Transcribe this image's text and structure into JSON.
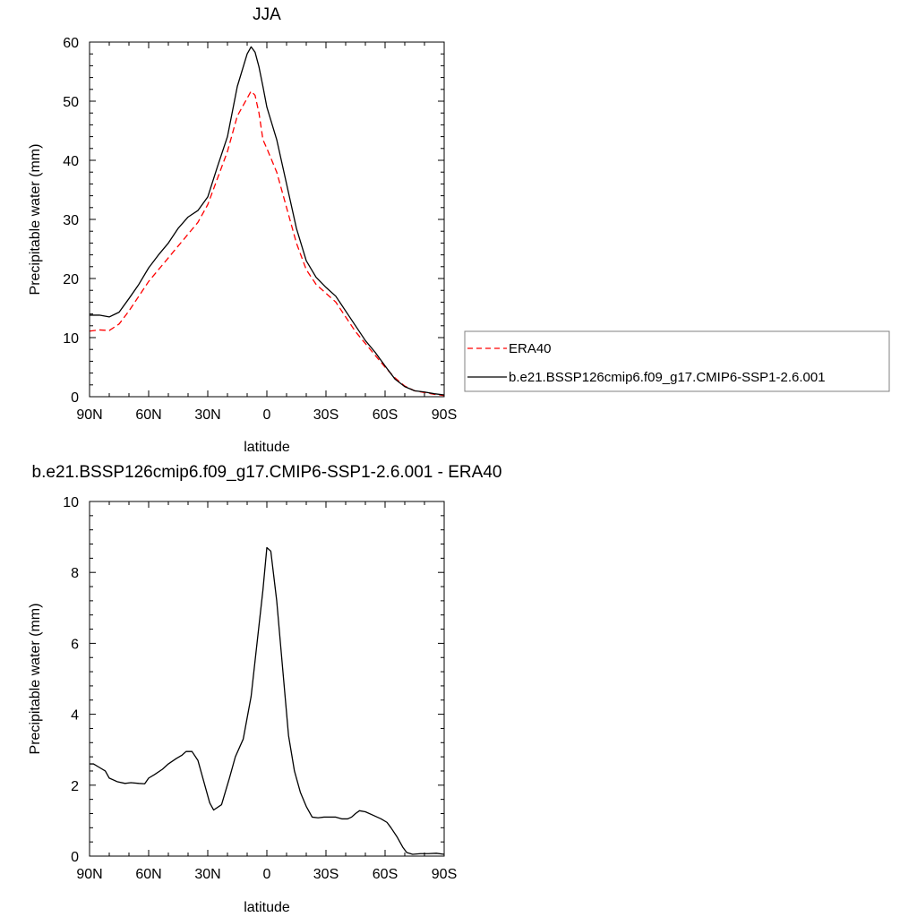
{
  "chart_data": [
    {
      "type": "line",
      "title": "JJA",
      "xlabel": "latitude",
      "ylabel": "Precipitable water (mm)",
      "xlim": [
        90,
        -90
      ],
      "ylim": [
        0,
        60
      ],
      "x_ticks": [
        {
          "value": 90,
          "label": "90N"
        },
        {
          "value": 60,
          "label": "60N"
        },
        {
          "value": 30,
          "label": "30N"
        },
        {
          "value": 0,
          "label": "0"
        },
        {
          "value": -30,
          "label": "30S"
        },
        {
          "value": -60,
          "label": "60S"
        },
        {
          "value": -90,
          "label": "90S"
        }
      ],
      "y_ticks": [
        0,
        10,
        20,
        30,
        40,
        50,
        60
      ],
      "legend": {
        "placement": "right"
      },
      "series": [
        {
          "name": "ERA40",
          "color": "#ff0000",
          "dash": "dashed",
          "x": [
            90,
            85,
            80,
            75,
            70,
            65,
            60,
            55,
            50,
            45,
            40,
            35,
            30,
            25,
            20,
            15,
            10,
            8,
            6,
            4,
            2,
            0,
            -5,
            -10,
            -15,
            -20,
            -25,
            -30,
            -35,
            -40,
            -45,
            -50,
            -55,
            -60,
            -65,
            -70,
            -75,
            -80,
            -85,
            -90
          ],
          "values": [
            11.1,
            11.3,
            11.2,
            12.3,
            14.5,
            17.0,
            19.5,
            21.5,
            23.5,
            25.5,
            27.5,
            29.5,
            32.5,
            37.0,
            41.5,
            47.5,
            50.5,
            51.7,
            51.0,
            48.0,
            43.5,
            42.0,
            38.0,
            32.0,
            26.0,
            21.5,
            19.0,
            17.5,
            16.0,
            13.5,
            11.0,
            9.0,
            7.0,
            5.0,
            3.2,
            1.8,
            1.0,
            0.7,
            0.4,
            0.2
          ]
        },
        {
          "name": "b.e21.BSSP126cmip6.f09_g17.CMIP6-SSP1-2.6.001",
          "color": "#000000",
          "dash": "solid",
          "x": [
            90,
            85,
            80,
            75,
            70,
            65,
            60,
            55,
            50,
            45,
            40,
            35,
            30,
            25,
            20,
            15,
            10,
            8,
            6,
            4,
            2,
            0,
            -5,
            -10,
            -15,
            -20,
            -25,
            -30,
            -35,
            -40,
            -45,
            -50,
            -55,
            -60,
            -65,
            -70,
            -75,
            -80,
            -85,
            -90
          ],
          "values": [
            13.8,
            13.8,
            13.5,
            14.3,
            16.6,
            19.0,
            21.8,
            24.0,
            26.0,
            28.5,
            30.4,
            31.5,
            33.8,
            39.0,
            44.0,
            52.5,
            58.0,
            59.2,
            58.3,
            55.8,
            52.5,
            49.0,
            43.5,
            36.0,
            28.5,
            23.0,
            20.2,
            18.5,
            17.0,
            14.5,
            12.0,
            9.5,
            7.5,
            5.2,
            3.0,
            1.7,
            1.0,
            0.8,
            0.5,
            0.3
          ]
        }
      ]
    },
    {
      "type": "line",
      "title": "b.e21.BSSP126cmip6.f09_g17.CMIP6-SSP1-2.6.001 - ERA40",
      "xlabel": "latitude",
      "ylabel": "Precipitable water (mm)",
      "xlim": [
        90,
        -90
      ],
      "ylim": [
        0,
        10
      ],
      "x_ticks": [
        {
          "value": 90,
          "label": "90N"
        },
        {
          "value": 60,
          "label": "60N"
        },
        {
          "value": 30,
          "label": "30N"
        },
        {
          "value": 0,
          "label": "0"
        },
        {
          "value": -30,
          "label": "30S"
        },
        {
          "value": -60,
          "label": "60S"
        },
        {
          "value": -90,
          "label": "90S"
        }
      ],
      "y_ticks": [
        0,
        2,
        4,
        6,
        8,
        10
      ],
      "series": [
        {
          "color": "#000000",
          "dash": "solid",
          "x": [
            90,
            88,
            85,
            82,
            80,
            76,
            72,
            69,
            65,
            62,
            60,
            57,
            53,
            50,
            46,
            43,
            41,
            38,
            35,
            32,
            29,
            27,
            23,
            19,
            16,
            12,
            8,
            6,
            4,
            2,
            0,
            -2,
            -5,
            -8,
            -11,
            -14,
            -17,
            -20,
            -23,
            -26,
            -29,
            -32,
            -35,
            -38,
            -41,
            -43,
            -45,
            -47,
            -50,
            -54,
            -58,
            -61,
            -63,
            -66,
            -69,
            -71,
            -74,
            -78,
            -82,
            -86,
            -90
          ],
          "values": [
            2.6,
            2.6,
            2.5,
            2.4,
            2.2,
            2.1,
            2.05,
            2.07,
            2.05,
            2.04,
            2.2,
            2.3,
            2.45,
            2.6,
            2.75,
            2.85,
            2.95,
            2.95,
            2.7,
            2.1,
            1.5,
            1.3,
            1.45,
            2.2,
            2.8,
            3.3,
            4.5,
            5.5,
            6.5,
            7.5,
            8.7,
            8.6,
            7.2,
            5.3,
            3.4,
            2.4,
            1.8,
            1.4,
            1.1,
            1.08,
            1.1,
            1.1,
            1.1,
            1.05,
            1.05,
            1.1,
            1.2,
            1.28,
            1.25,
            1.15,
            1.05,
            0.95,
            0.8,
            0.55,
            0.25,
            0.1,
            0.05,
            0.07,
            0.07,
            0.08,
            0.05
          ]
        }
      ]
    }
  ]
}
